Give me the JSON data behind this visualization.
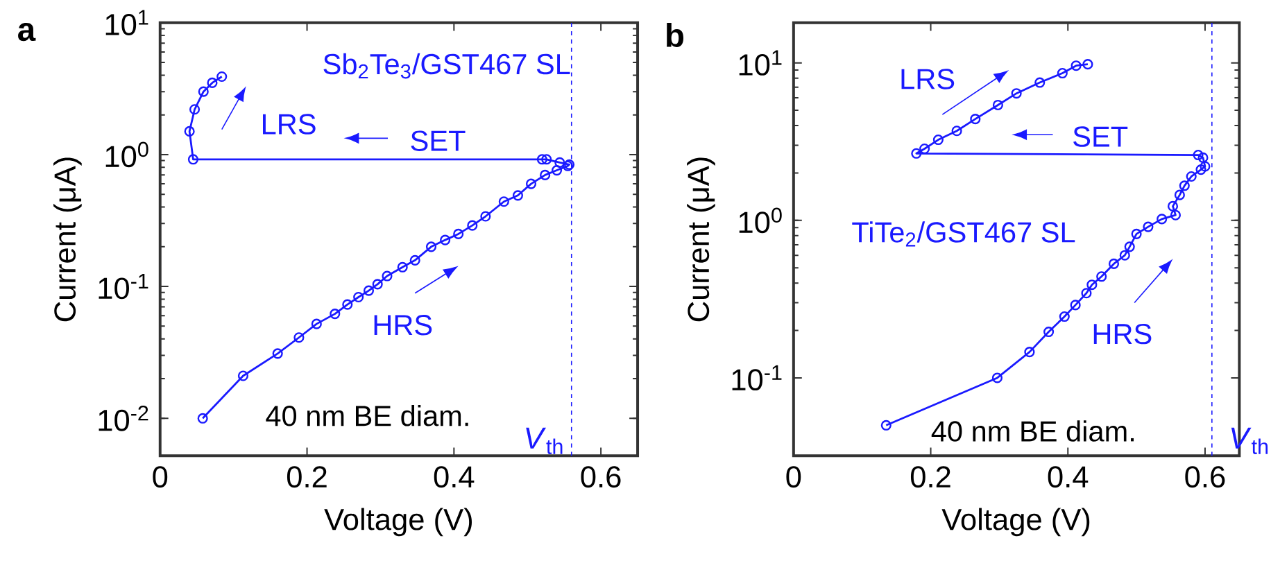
{
  "chart_data": [
    {
      "type": "line",
      "title": "a",
      "xlabel": "Voltage (V)",
      "ylabel": "Current (μA)",
      "log": "y",
      "marker": "circle",
      "line_style": "solid",
      "xlim": [
        0,
        0.65
      ],
      "ylim": [
        0.0052,
        10
      ],
      "xticks": [
        0,
        0.2,
        0.4,
        0.6
      ],
      "yticks": [
        {
          "value": 0.01,
          "label": "10$^{-2}$"
        },
        {
          "value": 0.1,
          "label": "10$^{-1}$"
        },
        {
          "value": 1,
          "label": "10$^{0}$"
        },
        {
          "value": 10,
          "label": "10$^{1}$"
        }
      ],
      "series": [
        {
          "color": "#1a1aff",
          "x": [
            0.058,
            0.113,
            0.16,
            0.189,
            0.213,
            0.238,
            0.255,
            0.27,
            0.284,
            0.296,
            0.309,
            0.33,
            0.347,
            0.369,
            0.388,
            0.406,
            0.425,
            0.443,
            0.468,
            0.487,
            0.505,
            0.524,
            0.54,
            0.555,
            0.557,
            0.544,
            0.526,
            0.52,
            0.045,
            0.04,
            0.047,
            0.059,
            0.071,
            0.084
          ],
          "values": [
            0.01,
            0.021,
            0.031,
            0.041,
            0.052,
            0.062,
            0.073,
            0.083,
            0.093,
            0.104,
            0.12,
            0.14,
            0.158,
            0.2,
            0.225,
            0.25,
            0.29,
            0.34,
            0.44,
            0.49,
            0.6,
            0.7,
            0.76,
            0.82,
            0.84,
            0.87,
            0.92,
            0.92,
            0.92,
            1.5,
            2.2,
            3.0,
            3.5,
            3.9
          ]
        }
      ],
      "ref_lines": [
        {
          "axis": "x",
          "value": 0.56,
          "label": "*V*$_{th}$",
          "color": "#1a1aff",
          "line_style": "dashed"
        }
      ],
      "annotations": [
        "Sb$_{2}$Te$_{3}$/GST467 SL",
        "LRS",
        "SET",
        "HRS",
        "40 nm BE diam."
      ]
    },
    {
      "type": "line",
      "title": "b",
      "xlabel": "Voltage (V)",
      "ylabel": "Current (μA)",
      "log": "y",
      "marker": "circle",
      "line_style": "solid",
      "xlim": [
        0,
        0.65
      ],
      "ylim": [
        0.032,
        18
      ],
      "xticks": [
        0,
        0.2,
        0.4,
        0.6
      ],
      "yticks": [
        {
          "value": 0.1,
          "label": "10$^{-1}$"
        },
        {
          "value": 1,
          "label": "10$^{0}$"
        },
        {
          "value": 10,
          "label": "10$^{1}$"
        }
      ],
      "series": [
        {
          "color": "#1a1aff",
          "x": [
            0.135,
            0.297,
            0.344,
            0.372,
            0.395,
            0.411,
            0.427,
            0.435,
            0.449,
            0.467,
            0.483,
            0.49,
            0.5,
            0.517,
            0.537,
            0.557,
            0.553,
            0.563,
            0.57,
            0.58,
            0.594,
            0.6,
            0.597,
            0.59,
            0.179,
            0.191,
            0.211,
            0.238,
            0.265,
            0.298,
            0.325,
            0.359,
            0.392,
            0.412,
            0.429
          ],
          "values": [
            0.05,
            0.1,
            0.146,
            0.196,
            0.245,
            0.29,
            0.345,
            0.39,
            0.44,
            0.53,
            0.6,
            0.68,
            0.82,
            0.91,
            1.02,
            1.08,
            1.23,
            1.45,
            1.66,
            1.9,
            2.1,
            2.2,
            2.5,
            2.6,
            2.66,
            2.85,
            3.25,
            3.7,
            4.4,
            5.4,
            6.4,
            7.5,
            8.6,
            9.6,
            9.8
          ]
        }
      ],
      "ref_lines": [
        {
          "axis": "x",
          "value": 0.61,
          "label": "*V*$_{th}$",
          "color": "#1a1aff",
          "line_style": "dashed"
        }
      ],
      "annotations": [
        "TiTe$_{2}$/GST467 SL",
        "LRS",
        "SET",
        "HRS",
        "40 nm BE diam."
      ]
    }
  ]
}
